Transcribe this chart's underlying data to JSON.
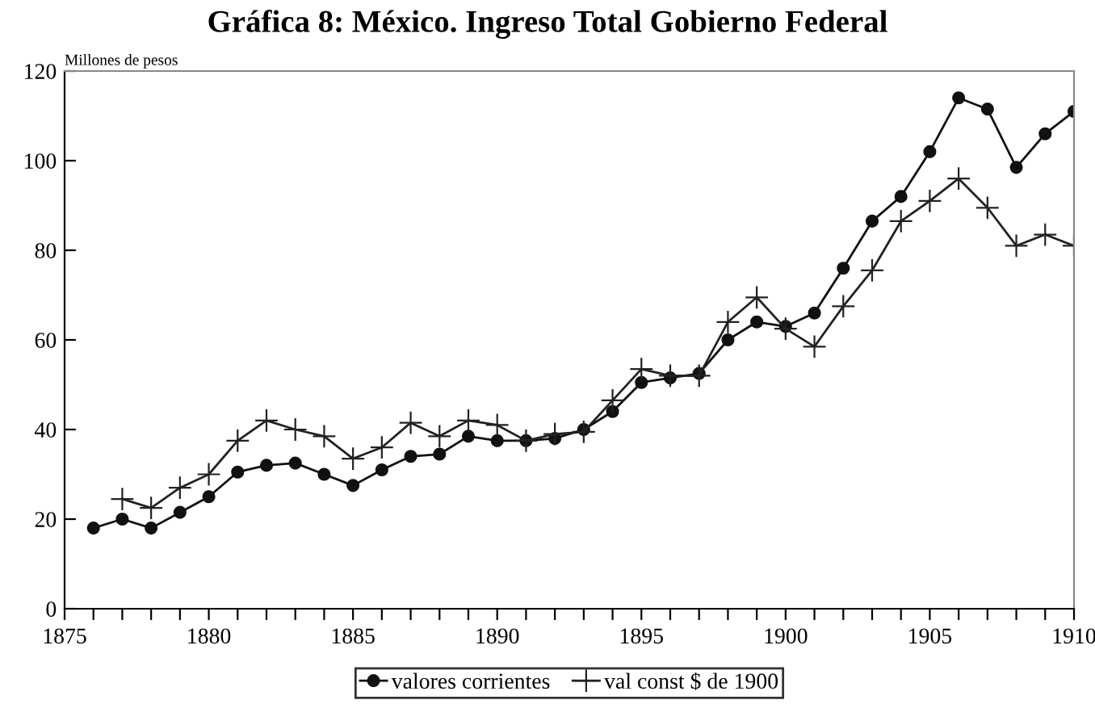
{
  "chart_data": {
    "type": "line",
    "title": "Gráfica 8: México. Ingreso Total Gobierno Federal",
    "ylabel": "Millones de pesos",
    "xlim": [
      1875,
      1910
    ],
    "ylim": [
      0,
      120
    ],
    "xticks": [
      1875,
      {
        "value": 1876,
        "label": null
      },
      {
        "value": 1877,
        "label": null
      },
      {
        "value": 1878,
        "label": null
      },
      {
        "value": 1879,
        "label": null
      },
      1880,
      {
        "value": 1881,
        "label": null
      },
      {
        "value": 1882,
        "label": null
      },
      {
        "value": 1883,
        "label": null
      },
      {
        "value": 1884,
        "label": null
      },
      1885,
      {
        "value": 1886,
        "label": null
      },
      {
        "value": 1887,
        "label": null
      },
      {
        "value": 1888,
        "label": null
      },
      {
        "value": 1889,
        "label": null
      },
      1890,
      {
        "value": 1891,
        "label": null
      },
      {
        "value": 1892,
        "label": null
      },
      {
        "value": 1893,
        "label": null
      },
      {
        "value": 1894,
        "label": null
      },
      1895,
      {
        "value": 1896,
        "label": null
      },
      {
        "value": 1897,
        "label": null
      },
      {
        "value": 1898,
        "label": null
      },
      {
        "value": 1899,
        "label": null
      },
      1900,
      {
        "value": 1901,
        "label": null
      },
      {
        "value": 1902,
        "label": null
      },
      {
        "value": 1903,
        "label": null
      },
      {
        "value": 1904,
        "label": null
      },
      1905,
      {
        "value": 1906,
        "label": null
      },
      {
        "value": 1907,
        "label": null
      },
      {
        "value": 1908,
        "label": null
      },
      {
        "value": 1909,
        "label": null
      },
      1910
    ],
    "yticks": [
      0,
      20,
      40,
      60,
      80,
      100,
      120
    ],
    "grid": false,
    "legend": "bottom",
    "line_style": "solid",
    "series": [
      {
        "name": "valores corrientes",
        "color": "#111111",
        "marker": "circle",
        "x": [
          1876,
          1877,
          1878,
          1879,
          1880,
          1881,
          1882,
          1883,
          1884,
          1885,
          1886,
          1887,
          1888,
          1889,
          1890,
          1891,
          1892,
          1893,
          1894,
          1895,
          1896,
          1897,
          1898,
          1899,
          1900,
          1901,
          1902,
          1903,
          1904,
          1905,
          1906,
          1907,
          1908,
          1909,
          1910
        ],
        "values": [
          18,
          20,
          18,
          21.5,
          25,
          30.5,
          32,
          32.5,
          30,
          27.5,
          31,
          34,
          34.5,
          38.5,
          37.5,
          37.5,
          38,
          40,
          44,
          50.5,
          51.5,
          52.5,
          60,
          64,
          63,
          66,
          76,
          86.5,
          92,
          102,
          114,
          111.5,
          98.5,
          106,
          111
        ]
      },
      {
        "name": "val const $ de 1900",
        "color": "#222222",
        "marker": "cross",
        "x": [
          1877,
          1878,
          1879,
          1880,
          1881,
          1882,
          1883,
          1884,
          1885,
          1886,
          1887,
          1888,
          1889,
          1890,
          1891,
          1892,
          1893,
          1894,
          1895,
          1896,
          1897,
          1898,
          1899,
          1900,
          1901,
          1902,
          1903,
          1904,
          1905,
          1906,
          1907,
          1908,
          1909,
          1910
        ],
        "values": [
          24.5,
          22.5,
          27,
          30,
          37.5,
          42,
          40,
          38.5,
          33.5,
          36,
          41.5,
          38.5,
          42,
          41,
          37.5,
          39,
          39.5,
          46.5,
          53.5,
          52,
          52,
          64,
          69.5,
          62.5,
          58.5,
          67.5,
          75.5,
          86.5,
          91,
          96,
          89.5,
          81,
          83.5,
          81
        ]
      }
    ]
  }
}
